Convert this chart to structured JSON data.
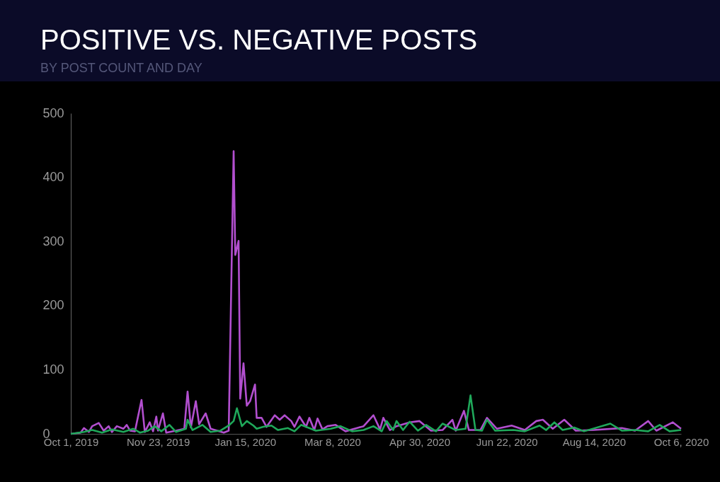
{
  "chart_data": {
    "type": "line",
    "title": "POSITIVE VS. NEGATIVE POSTS",
    "subtitle": "BY POST COUNT AND DAY",
    "xlim": [
      "2019-10-01",
      "2020-10-06"
    ],
    "xticks": [
      {
        "value": "2019-10-01",
        "label": "Oct 1, 2019"
      },
      {
        "value": "2019-11-23",
        "label": "Nov 23, 2019"
      },
      {
        "value": "2020-01-15",
        "label": "Jan 15, 2020"
      },
      {
        "value": "2020-03-08",
        "label": "Mar 8, 2020"
      },
      {
        "value": "2020-04-30",
        "label": "Apr 30, 2020"
      },
      {
        "value": "2020-06-22",
        "label": "Jun 22, 2020"
      },
      {
        "value": "2020-08-14",
        "label": "Aug 14, 2020"
      },
      {
        "value": "2020-10-06",
        "label": "Oct 6, 2020"
      }
    ],
    "ylim": [
      0,
      500
    ],
    "yticks": [
      0,
      100,
      200,
      300,
      400,
      500
    ],
    "grid": false,
    "marker": "none",
    "line_style": "solid",
    "series": [
      {
        "color": "#b24fcf",
        "x": [
          "2019-10-01",
          "2019-10-07",
          "2019-10-09",
          "2019-10-12",
          "2019-10-14",
          "2019-10-18",
          "2019-10-21",
          "2019-10-24",
          "2019-10-26",
          "2019-10-29",
          "2019-11-02",
          "2019-11-04",
          "2019-11-06",
          "2019-11-09",
          "2019-11-13",
          "2019-11-15",
          "2019-11-18",
          "2019-11-20",
          "2019-11-22",
          "2019-11-23",
          "2019-11-26",
          "2019-11-28",
          "2019-12-04",
          "2019-12-09",
          "2019-12-11",
          "2019-12-13",
          "2019-12-16",
          "2019-12-18",
          "2019-12-22",
          "2019-12-25",
          "2019-12-29",
          "2020-01-02",
          "2020-01-05",
          "2020-01-08",
          "2020-01-09",
          "2020-01-11",
          "2020-01-12",
          "2020-01-14",
          "2020-01-16",
          "2020-01-18",
          "2020-01-21",
          "2020-01-22",
          "2020-01-25",
          "2020-01-28",
          "2020-02-02",
          "2020-02-05",
          "2020-02-08",
          "2020-02-12",
          "2020-02-14",
          "2020-02-17",
          "2020-02-21",
          "2020-02-23",
          "2020-02-26",
          "2020-02-28",
          "2020-03-02",
          "2020-03-05",
          "2020-03-10",
          "2020-03-16",
          "2020-03-23",
          "2020-03-27",
          "2020-04-02",
          "2020-04-06",
          "2020-04-08",
          "2020-04-12",
          "2020-04-16",
          "2020-04-24",
          "2020-04-30",
          "2020-05-07",
          "2020-05-14",
          "2020-05-20",
          "2020-05-22",
          "2020-05-27",
          "2020-05-30",
          "2020-06-06",
          "2020-06-10",
          "2020-06-16",
          "2020-06-25",
          "2020-07-03",
          "2020-07-10",
          "2020-07-14",
          "2020-07-20",
          "2020-07-27",
          "2020-08-03",
          "2020-08-14",
          "2020-08-31",
          "2020-09-08",
          "2020-09-16",
          "2020-09-21",
          "2020-10-01",
          "2020-10-06"
        ],
        "values": [
          0,
          2,
          9,
          3,
          12,
          17,
          5,
          12,
          3,
          12,
          8,
          14,
          5,
          4,
          53,
          3,
          18,
          4,
          27,
          5,
          32,
          2,
          5,
          8,
          66,
          10,
          51,
          15,
          32,
          8,
          5,
          2,
          5,
          441,
          279,
          301,
          55,
          110,
          44,
          51,
          77,
          25,
          25,
          11,
          29,
          22,
          29,
          20,
          11,
          27,
          11,
          25,
          6,
          24,
          7,
          12,
          14,
          4,
          9,
          12,
          29,
          7,
          25,
          6,
          12,
          18,
          20,
          5,
          6,
          22,
          5,
          36,
          6,
          6,
          25,
          8,
          13,
          6,
          20,
          22,
          8,
          22,
          5,
          6,
          9,
          5,
          20,
          5,
          18,
          8
        ]
      },
      {
        "color": "#1fa85a",
        "x": [
          "2019-10-01",
          "2019-10-09",
          "2019-10-14",
          "2019-10-20",
          "2019-10-26",
          "2019-11-02",
          "2019-11-08",
          "2019-11-12",
          "2019-11-17",
          "2019-11-21",
          "2019-11-25",
          "2019-11-30",
          "2019-12-04",
          "2019-12-10",
          "2019-12-11",
          "2019-12-14",
          "2019-12-20",
          "2019-12-25",
          "2019-12-31",
          "2020-01-05",
          "2020-01-08",
          "2020-01-10",
          "2020-01-13",
          "2020-01-16",
          "2020-01-20",
          "2020-01-22",
          "2020-01-26",
          "2020-01-31",
          "2020-02-04",
          "2020-02-10",
          "2020-02-14",
          "2020-02-18",
          "2020-02-27",
          "2020-03-07",
          "2020-03-13",
          "2020-03-20",
          "2020-03-27",
          "2020-04-02",
          "2020-04-07",
          "2020-04-10",
          "2020-04-14",
          "2020-04-16",
          "2020-04-20",
          "2020-04-24",
          "2020-04-29",
          "2020-05-04",
          "2020-05-10",
          "2020-05-14",
          "2020-05-22",
          "2020-05-28",
          "2020-05-31",
          "2020-06-03",
          "2020-06-07",
          "2020-06-10",
          "2020-06-15",
          "2020-06-26",
          "2020-07-03",
          "2020-07-12",
          "2020-07-16",
          "2020-07-21",
          "2020-07-26",
          "2020-08-02",
          "2020-08-08",
          "2020-08-24",
          "2020-08-31",
          "2020-09-08",
          "2020-09-16",
          "2020-09-23",
          "2020-09-29",
          "2020-10-06"
        ],
        "values": [
          0,
          3,
          6,
          2,
          7,
          3,
          8,
          2,
          5,
          12,
          4,
          14,
          3,
          8,
          22,
          6,
          14,
          3,
          5,
          13,
          20,
          40,
          12,
          20,
          13,
          8,
          11,
          13,
          6,
          9,
          4,
          14,
          5,
          8,
          12,
          4,
          6,
          12,
          4,
          20,
          6,
          20,
          6,
          19,
          5,
          14,
          4,
          16,
          6,
          8,
          60,
          6,
          5,
          22,
          5,
          6,
          4,
          13,
          6,
          18,
          6,
          10,
          4,
          16,
          5,
          6,
          4,
          14,
          4,
          6
        ]
      }
    ]
  }
}
